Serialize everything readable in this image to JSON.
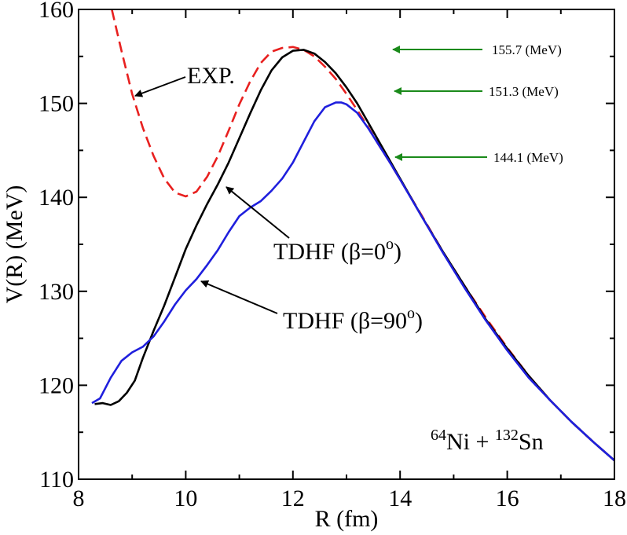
{
  "chart_data": {
    "type": "line",
    "title": "",
    "xlabel": "R (fm)",
    "ylabel": "V(R) (MeV)",
    "xlim": [
      8,
      18
    ],
    "ylim": [
      110,
      160
    ],
    "xticks": [
      8,
      10,
      12,
      14,
      16,
      18
    ],
    "yticks": [
      110,
      120,
      130,
      140,
      150,
      160
    ],
    "xtick_labels": [
      "8",
      "10",
      "12",
      "14",
      "16",
      "18"
    ],
    "ytick_labels": [
      "110",
      "120",
      "130",
      "140",
      "150",
      "160"
    ],
    "series": [
      {
        "name": "EXP.",
        "color": "#e8201f",
        "dash": true,
        "x": [
          8.62,
          8.8,
          9.0,
          9.2,
          9.4,
          9.6,
          9.8,
          10.0,
          10.2,
          10.4,
          10.6,
          10.8,
          11.0,
          11.2,
          11.4,
          11.6,
          11.8,
          12.0,
          12.2,
          12.4,
          12.6,
          12.8,
          13.0,
          13.2,
          13.4,
          13.6,
          13.8,
          14.0,
          14.4,
          14.8,
          15.2,
          15.6,
          16.0,
          16.4,
          16.8,
          17.2,
          17.6,
          18.0
        ],
        "y": [
          160.0,
          155.6,
          151.0,
          147.4,
          144.4,
          142.0,
          140.5,
          140.1,
          140.6,
          142.2,
          144.4,
          147.1,
          149.9,
          152.3,
          154.3,
          155.5,
          155.9,
          156.0,
          155.7,
          155.0,
          153.9,
          152.6,
          151.0,
          149.3,
          147.5,
          145.6,
          143.8,
          141.9,
          138.1,
          134.2,
          130.6,
          127.2,
          124.0,
          121.0,
          118.4,
          116.1,
          114.0,
          112.0
        ]
      },
      {
        "name": "TDHF (β=0°)",
        "color": "#000000",
        "dash": false,
        "x": [
          8.3,
          8.45,
          8.6,
          8.75,
          8.9,
          9.05,
          9.2,
          9.4,
          9.6,
          9.8,
          10.0,
          10.2,
          10.4,
          10.6,
          10.8,
          11.0,
          11.2,
          11.4,
          11.6,
          11.8,
          12.0,
          12.2,
          12.4,
          12.6,
          12.8,
          13.0,
          13.2,
          13.4,
          13.6,
          13.8,
          14.0,
          14.4,
          14.8,
          15.2,
          15.6,
          16.0,
          16.4,
          16.8,
          17.2,
          17.6,
          18.0
        ],
        "y": [
          118.0,
          118.1,
          117.9,
          118.3,
          119.2,
          120.5,
          122.9,
          125.8,
          128.5,
          131.5,
          134.5,
          137.0,
          139.3,
          141.4,
          143.7,
          146.3,
          148.9,
          151.4,
          153.5,
          154.9,
          155.6,
          155.7,
          155.3,
          154.4,
          153.2,
          151.7,
          150.0,
          148.0,
          146.0,
          144.0,
          142.0,
          138.0,
          134.2,
          130.6,
          127.0,
          123.9,
          121.0,
          118.4,
          116.1,
          114.0,
          112.0
        ]
      },
      {
        "name": "TDHF (β=90°)",
        "color": "#1f1fdd",
        "dash": false,
        "x": [
          8.25,
          8.4,
          8.6,
          8.8,
          9.0,
          9.2,
          9.4,
          9.6,
          9.8,
          10.0,
          10.2,
          10.4,
          10.6,
          10.8,
          11.0,
          11.2,
          11.4,
          11.6,
          11.8,
          12.0,
          12.2,
          12.4,
          12.6,
          12.8,
          12.9,
          13.0,
          13.2,
          13.4,
          13.6,
          13.8,
          14.0,
          14.4,
          14.8,
          15.2,
          15.6,
          16.0,
          16.4,
          16.8,
          17.2,
          17.6,
          18.0
        ],
        "y": [
          118.1,
          118.6,
          120.8,
          122.6,
          123.5,
          124.1,
          125.2,
          126.8,
          128.6,
          130.1,
          131.3,
          132.8,
          134.4,
          136.3,
          138.0,
          138.9,
          139.6,
          140.7,
          142.0,
          143.7,
          145.9,
          148.1,
          149.6,
          150.1,
          150.1,
          149.9,
          149.0,
          147.4,
          145.6,
          143.8,
          141.9,
          138.0,
          134.1,
          130.4,
          126.9,
          123.7,
          120.8,
          118.4,
          116.1,
          114.0,
          112.0
        ]
      }
    ],
    "annotations": [
      {
        "text": "EXP.",
        "x": 9.0,
        "y": 151.0
      },
      {
        "text_main": "TDHF (β=0",
        "sup": "o",
        "text_end": ")",
        "x": 10.7,
        "y": 141.2
      },
      {
        "text_main": "TDHF (β=90",
        "sup": "o",
        "text_end": ")",
        "x": 10.2,
        "y": 131.1
      }
    ],
    "energy_markers": [
      {
        "label": "155.7 (MeV)",
        "value": 155.7,
        "arrow_tip_x": 13.75
      },
      {
        "label": "151.3 (MeV)",
        "value": 151.3,
        "arrow_tip_x": 13.75
      },
      {
        "label": "144.1 (MeV)",
        "value": 144.1,
        "arrow_tip_x": 13.95
      }
    ],
    "reaction": {
      "a1": "64",
      "el1": "Ni",
      "plus": " + ",
      "a2": "132",
      "el2": "Sn"
    },
    "arrow_color_green": "#1a8a1a"
  }
}
